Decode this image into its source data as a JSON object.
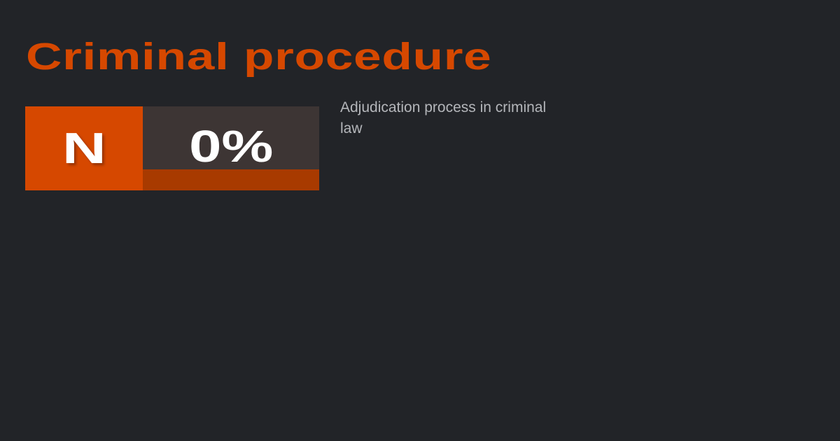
{
  "title": "Criminal procedure",
  "grade": "N",
  "score": {
    "label": "0%",
    "progress_percent": 0
  },
  "description": "Adjudication process in criminal law",
  "colors": {
    "background": "#222428",
    "accent": "#d64800",
    "score_bg": "#3d3534",
    "bar": "#a83a00"
  }
}
